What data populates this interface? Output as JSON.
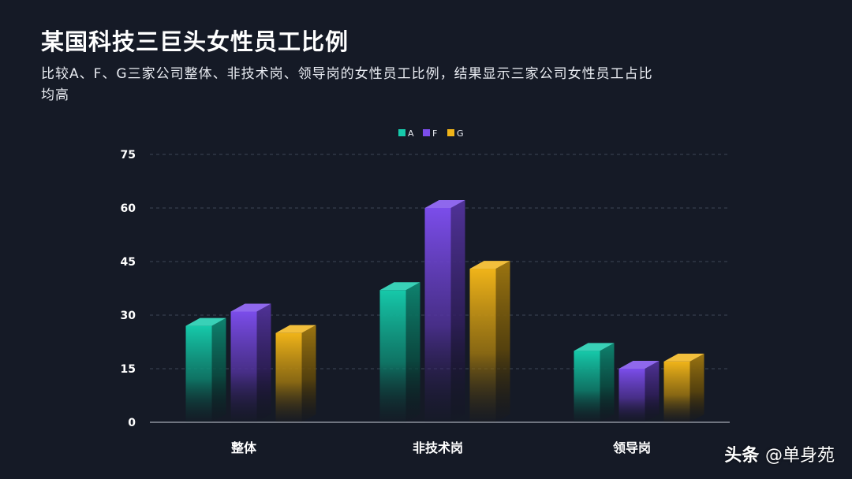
{
  "title": "某国科技三巨头女性员工比例",
  "subtitle": "比较A、F、G三家公司整体、非技术岗、领导岗的女性员工比例，结果显示三家公司女性员工占比均高",
  "watermark": {
    "brand": "头条",
    "handle": "@单身苑"
  },
  "colors": {
    "background": "#151a26",
    "A": "#16c9aa",
    "F": "#7b4dea",
    "G": "#f0b419"
  },
  "chart_data": {
    "type": "bar",
    "style": "3d-cuboid-gradient",
    "categories": [
      "整体",
      "非技术岗",
      "领导岗"
    ],
    "series": [
      {
        "name": "A",
        "values": [
          27,
          37,
          20
        ]
      },
      {
        "name": "F",
        "values": [
          31,
          60,
          15
        ]
      },
      {
        "name": "G",
        "values": [
          25,
          43,
          17
        ]
      }
    ],
    "ylim": [
      0,
      75
    ],
    "yticks": [
      0,
      15,
      30,
      45,
      60,
      75
    ],
    "grid": true,
    "legend_position": "top-center"
  }
}
